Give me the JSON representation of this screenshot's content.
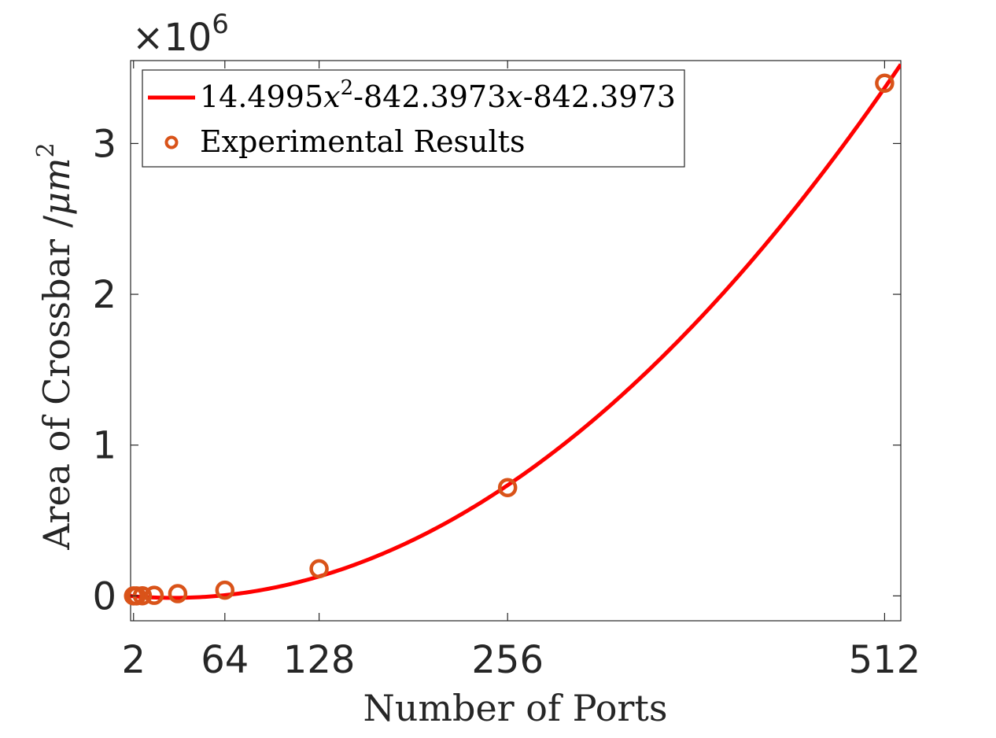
{
  "chart_data": {
    "type": "scatter",
    "xlabel": "Number of Ports",
    "ylabel": "Area of Crossbar /μm²",
    "ylabel_parts": {
      "main": "Area of Crossbar /",
      "var": "μm",
      "sup": "2"
    },
    "y_exponent": {
      "prefix": "×10",
      "power": "6"
    },
    "xlim": [
      0,
      523
    ],
    "ylim": [
      -0.165,
      3.55
    ],
    "y_scale_factor": 1000000,
    "x_ticks": [
      2,
      64,
      128,
      256,
      512
    ],
    "y_ticks": [
      0,
      1,
      2,
      3
    ],
    "grid": false,
    "legend_position": "top-left",
    "series": [
      {
        "name": "14.4995x²-842.3973x-842.3973",
        "kind": "line",
        "color": "#ff0000",
        "equation": {
          "a": 14.4995,
          "b": -842.3973,
          "c": -842.3973
        },
        "x_range": [
          0,
          523
        ]
      },
      {
        "name": "Experimental Results",
        "kind": "scatter",
        "color": "#d95319",
        "x": [
          2,
          4,
          8,
          16,
          32,
          64,
          128,
          256,
          512
        ],
        "y": [
          6e-05,
          0.00023,
          0.0009,
          0.0037,
          0.0148,
          0.0378,
          0.18,
          0.718,
          3.4
        ]
      }
    ],
    "legend": {
      "line_label": {
        "a": "14.4995",
        "x1": "x",
        "sup": "2",
        "b": "-842.3973",
        "x2": "x",
        "c": "-842.3973"
      },
      "scatter_label": "Experimental Results"
    }
  }
}
